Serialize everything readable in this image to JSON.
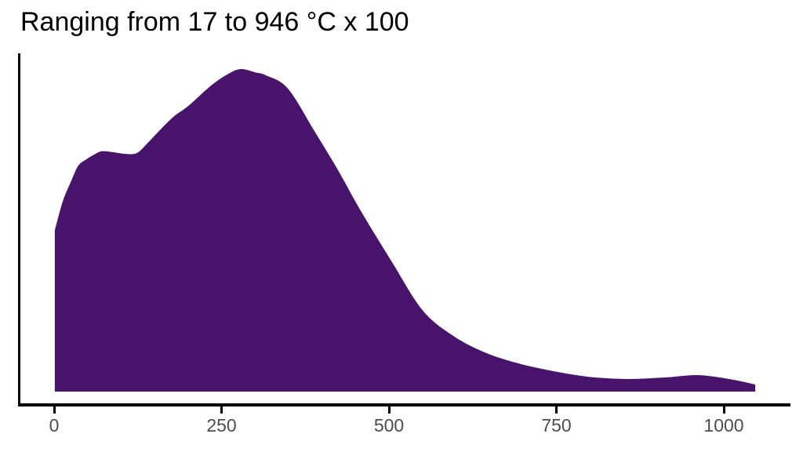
{
  "colors": {
    "background": "#ffffff",
    "fill": "#48136b",
    "axis": "#000000",
    "tick_label": "#4d4d4d",
    "title": "#000000"
  },
  "chart_data": {
    "type": "area",
    "subtype": "density",
    "title": "Ranging from 17 to 946 °C x 100",
    "xlabel": "",
    "ylabel": "",
    "legend": null,
    "grid": false,
    "x_ticks": [
      0,
      250,
      500,
      750,
      1000
    ],
    "xlim": [
      -54,
      1100
    ],
    "ylim_rel": [
      0,
      1.05
    ],
    "data_range_note": "values range from 17 to 946, density curve drawn from 0 to ~1047",
    "peak": {
      "x": 279,
      "density_rel": 1.0
    },
    "curve": {
      "x": [
        1,
        13,
        25,
        36,
        48,
        60,
        71,
        89,
        107,
        124,
        142,
        153,
        177,
        200,
        235,
        260,
        279,
        300,
        317,
        349,
        388,
        423,
        458,
        505,
        551,
        598,
        645,
        692,
        739,
        797,
        856,
        914,
        961,
        1008,
        1047
      ],
      "density_rel": [
        0.5,
        0.59,
        0.65,
        0.7,
        0.72,
        0.735,
        0.745,
        0.742,
        0.737,
        0.74,
        0.776,
        0.8,
        0.85,
        0.885,
        0.95,
        0.985,
        1.0,
        0.99,
        0.98,
        0.94,
        0.81,
        0.69,
        0.56,
        0.4,
        0.25,
        0.17,
        0.12,
        0.088,
        0.066,
        0.046,
        0.039,
        0.044,
        0.051,
        0.039,
        0.022
      ]
    }
  }
}
